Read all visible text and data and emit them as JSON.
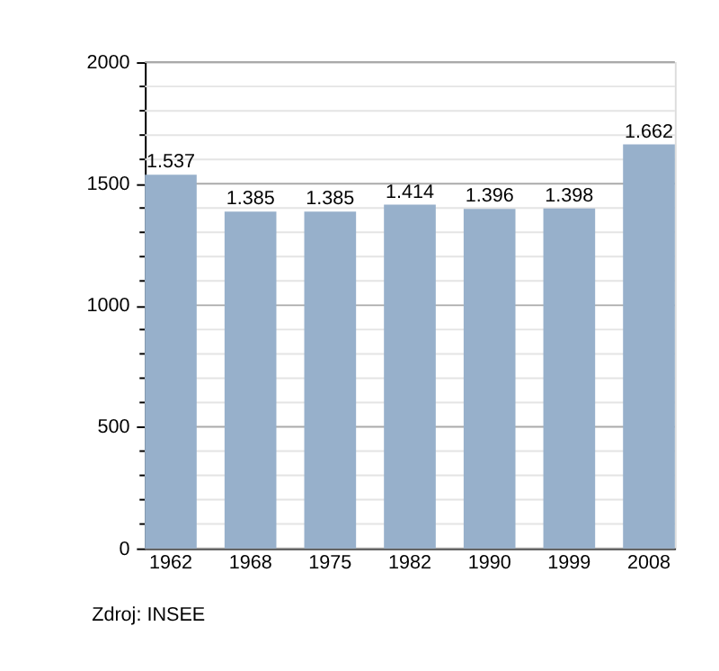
{
  "chart_data": {
    "type": "bar",
    "categories": [
      "1962",
      "1968",
      "1975",
      "1982",
      "1990",
      "1999",
      "2008"
    ],
    "values": [
      1537,
      1385,
      1385,
      1414,
      1396,
      1398,
      1662
    ],
    "value_labels": [
      "1.537",
      "1.385",
      "1.385",
      "1.414",
      "1.396",
      "1.398",
      "1.662"
    ],
    "color": "#97b0cb",
    "ylim": [
      0,
      2000
    ],
    "yticks": [
      0,
      {
        "value": 100,
        "label": null
      },
      {
        "value": 200,
        "label": null
      },
      {
        "value": 300,
        "label": null
      },
      {
        "value": 400,
        "label": null
      },
      500,
      {
        "value": 600,
        "label": null
      },
      {
        "value": 700,
        "label": null
      },
      {
        "value": 800,
        "label": null
      },
      {
        "value": 900,
        "label": null
      },
      1000,
      {
        "value": 1100,
        "label": null
      },
      {
        "value": 1200,
        "label": null
      },
      {
        "value": 1300,
        "label": null
      },
      {
        "value": 1400,
        "label": null
      },
      1500,
      {
        "value": 1600,
        "label": null
      },
      {
        "value": 1700,
        "label": null
      },
      {
        "value": 1800,
        "label": null
      },
      {
        "value": 1900,
        "label": null
      },
      2000
    ],
    "grid": true,
    "annotations": [
      "Zdroj: INSEE"
    ]
  }
}
